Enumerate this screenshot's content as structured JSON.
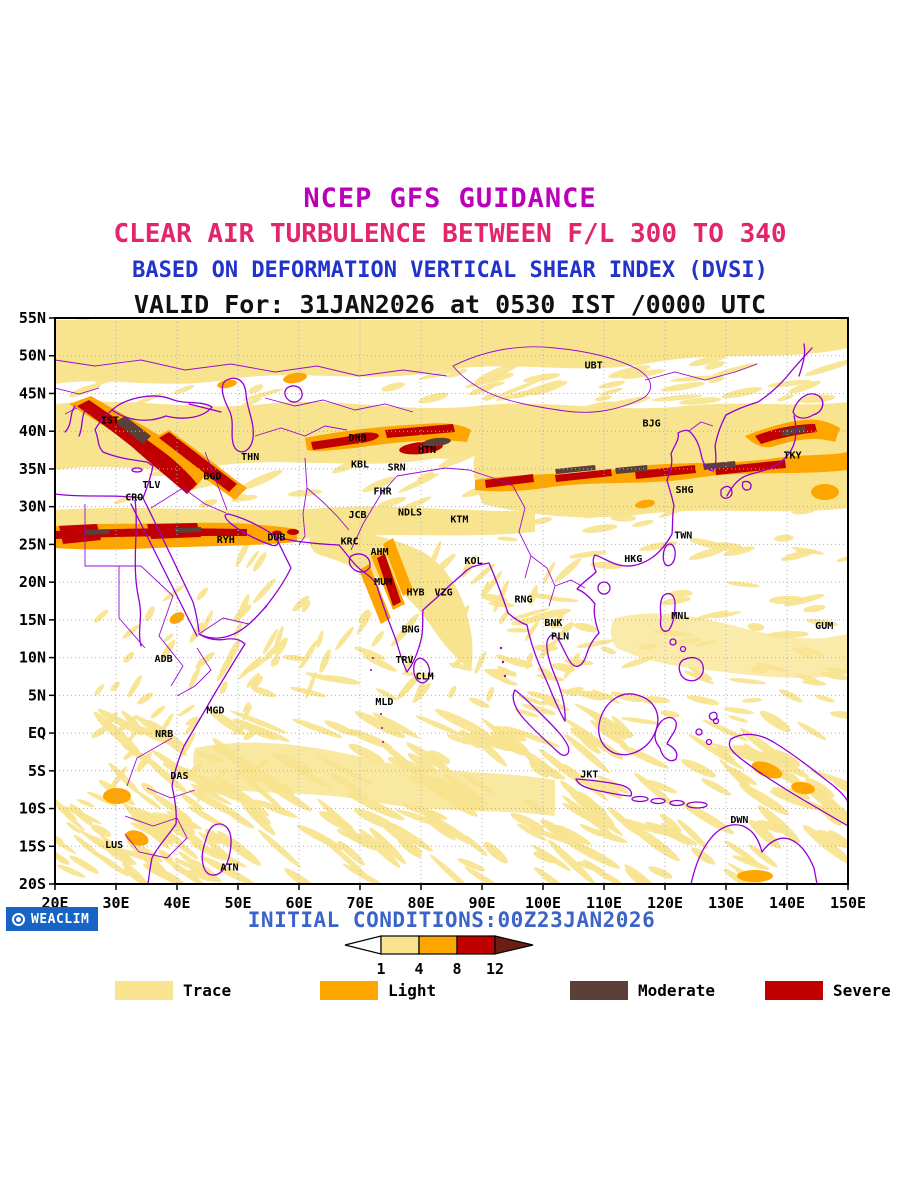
{
  "titles": {
    "line1": "NCEP GFS GUIDANCE",
    "line2": "CLEAR AIR TURBULENCE BETWEEN F/L 300 TO 340",
    "line3": "BASED ON DEFORMATION VERTICAL SHEAR INDEX (DVSI)",
    "line4": "VALID For: 31JAN2026 at 0530 IST /0000 UTC"
  },
  "colors": {
    "title1": "#bb00bb",
    "title2": "#e3256b",
    "title3": "#2233cc",
    "title4": "#111111",
    "map_outline": "#9400d3",
    "grid": "#b0b0b0",
    "trace": "#f8e48f",
    "light": "#ffa500",
    "moderate": "#5a4038",
    "severe": "#c00000",
    "scale_arrow_right": "#6d1e14",
    "logo_bg": "#1863c6",
    "footer_text": "#3c64c8"
  },
  "map": {
    "lon_min": 20,
    "lon_max": 150,
    "lat_min": -20,
    "lat_max": 55,
    "x_tick_labels": [
      "20E",
      "30E",
      "40E",
      "50E",
      "60E",
      "70E",
      "80E",
      "90E",
      "100E",
      "110E",
      "120E",
      "130E",
      "140E",
      "150E"
    ],
    "y_tick_labels": [
      "55N",
      "50N",
      "45N",
      "40N",
      "35N",
      "30N",
      "25N",
      "20N",
      "15N",
      "10N",
      "5N",
      "EQ",
      "5S",
      "10S",
      "15S",
      "20S"
    ],
    "stations": [
      {
        "id": "IST",
        "lon": 29.0,
        "lat": 41.0
      },
      {
        "id": "THN",
        "lon": 52.0,
        "lat": 36.2
      },
      {
        "id": "BGD",
        "lon": 45.8,
        "lat": 33.6
      },
      {
        "id": "TLV",
        "lon": 35.8,
        "lat": 32.5
      },
      {
        "id": "CRO",
        "lon": 33.0,
        "lat": 30.8
      },
      {
        "id": "RYH",
        "lon": 48.0,
        "lat": 25.2
      },
      {
        "id": "DUB",
        "lon": 56.3,
        "lat": 25.5
      },
      {
        "id": "DHB",
        "lon": 69.6,
        "lat": 38.7
      },
      {
        "id": "KBL",
        "lon": 70.0,
        "lat": 35.2
      },
      {
        "id": "SRN",
        "lon": 76.0,
        "lat": 34.8
      },
      {
        "id": "HTN",
        "lon": 81.0,
        "lat": 37.1
      },
      {
        "id": "FHR",
        "lon": 73.7,
        "lat": 31.6
      },
      {
        "id": "JCB",
        "lon": 69.6,
        "lat": 28.5
      },
      {
        "id": "NDLS",
        "lon": 78.2,
        "lat": 28.8
      },
      {
        "id": "KTM",
        "lon": 86.3,
        "lat": 27.9
      },
      {
        "id": "KRC",
        "lon": 68.3,
        "lat": 25.0
      },
      {
        "id": "AHM",
        "lon": 73.2,
        "lat": 23.6
      },
      {
        "id": "KOL",
        "lon": 88.6,
        "lat": 22.4
      },
      {
        "id": "MUM",
        "lon": 73.8,
        "lat": 19.6
      },
      {
        "id": "HYB",
        "lon": 79.1,
        "lat": 18.2
      },
      {
        "id": "VZG",
        "lon": 83.7,
        "lat": 18.2
      },
      {
        "id": "RNG",
        "lon": 96.8,
        "lat": 17.3
      },
      {
        "id": "BNG",
        "lon": 78.3,
        "lat": 13.3
      },
      {
        "id": "BNK",
        "lon": 101.7,
        "lat": 14.2
      },
      {
        "id": "PLN",
        "lon": 102.8,
        "lat": 12.4
      },
      {
        "id": "TRV",
        "lon": 77.3,
        "lat": 9.3
      },
      {
        "id": "CLM",
        "lon": 80.6,
        "lat": 7.1
      },
      {
        "id": "MLD",
        "lon": 74.0,
        "lat": 3.7
      },
      {
        "id": "ADB",
        "lon": 37.8,
        "lat": 9.4
      },
      {
        "id": "MGD",
        "lon": 46.3,
        "lat": 2.6
      },
      {
        "id": "NRB",
        "lon": 37.9,
        "lat": -0.5
      },
      {
        "id": "DAS",
        "lon": 40.4,
        "lat": -6.1
      },
      {
        "id": "LUS",
        "lon": 29.7,
        "lat": -15.2
      },
      {
        "id": "ATN",
        "lon": 48.6,
        "lat": -18.2
      },
      {
        "id": "UBT",
        "lon": 108.3,
        "lat": 48.3
      },
      {
        "id": "BJG",
        "lon": 117.8,
        "lat": 40.6
      },
      {
        "id": "SHG",
        "lon": 123.2,
        "lat": 31.8
      },
      {
        "id": "TWN",
        "lon": 123.0,
        "lat": 25.8
      },
      {
        "id": "HKG",
        "lon": 114.8,
        "lat": 22.7
      },
      {
        "id": "TKY",
        "lon": 140.9,
        "lat": 36.4
      },
      {
        "id": "MNL",
        "lon": 122.5,
        "lat": 15.1
      },
      {
        "id": "GUM",
        "lon": 146.1,
        "lat": 13.8
      },
      {
        "id": "JKT",
        "lon": 107.6,
        "lat": -5.9
      },
      {
        "id": "DWN",
        "lon": 132.2,
        "lat": -11.9
      }
    ]
  },
  "footer": {
    "logo": "WEACLIM",
    "initial_conditions": "INITIAL CONDITIONS:00Z23JAN2026"
  },
  "scale": {
    "tick_labels": [
      "1",
      "4",
      "8",
      "12"
    ]
  },
  "legend": [
    {
      "label": "Trace",
      "color_key": "trace"
    },
    {
      "label": "Light",
      "color_key": "light"
    },
    {
      "label": "Moderate",
      "color_key": "moderate"
    },
    {
      "label": "Severe",
      "color_key": "severe"
    }
  ]
}
